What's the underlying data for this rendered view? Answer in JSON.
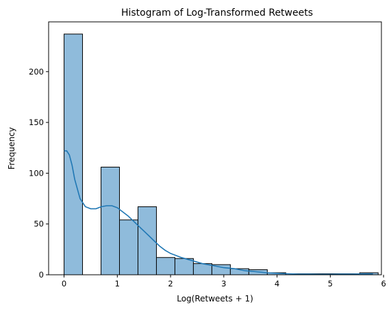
{
  "chart_data": {
    "type": "bar",
    "title": "Histogram of Log-Transformed Retweets",
    "xlabel": "Log(Retweets + 1)",
    "ylabel": "Frequency",
    "xlim": [
      -0.29,
      5.96
    ],
    "ylim": [
      0,
      249
    ],
    "xticks": [
      0,
      1,
      2,
      3,
      4,
      5,
      6
    ],
    "yticks": [
      0,
      50,
      100,
      150,
      200
    ],
    "grid": false,
    "bar_color": "#8fbbdb",
    "line_color": "#1f77b4",
    "bins": [
      {
        "x0": 0.0,
        "x1": 0.347,
        "value": 237
      },
      {
        "x0": 0.347,
        "x1": 0.694,
        "value": 0
      },
      {
        "x0": 0.694,
        "x1": 1.041,
        "value": 106
      },
      {
        "x0": 1.041,
        "x1": 1.388,
        "value": 54
      },
      {
        "x0": 1.388,
        "x1": 1.735,
        "value": 67
      },
      {
        "x0": 1.735,
        "x1": 2.082,
        "value": 17
      },
      {
        "x0": 2.082,
        "x1": 2.429,
        "value": 16
      },
      {
        "x0": 2.429,
        "x1": 2.776,
        "value": 11
      },
      {
        "x0": 2.776,
        "x1": 3.123,
        "value": 10
      },
      {
        "x0": 3.123,
        "x1": 3.47,
        "value": 6
      },
      {
        "x0": 3.47,
        "x1": 3.817,
        "value": 5
      },
      {
        "x0": 3.817,
        "x1": 4.164,
        "value": 2
      },
      {
        "x0": 4.164,
        "x1": 4.511,
        "value": 1
      },
      {
        "x0": 4.511,
        "x1": 4.858,
        "value": 1
      },
      {
        "x0": 4.858,
        "x1": 5.205,
        "value": 1
      },
      {
        "x0": 5.205,
        "x1": 5.552,
        "value": 1
      },
      {
        "x0": 5.552,
        "x1": 5.899,
        "value": 2
      }
    ],
    "kde": {
      "x": [
        0.0,
        0.05,
        0.1,
        0.15,
        0.2,
        0.3,
        0.4,
        0.5,
        0.6,
        0.7,
        0.8,
        0.9,
        1.0,
        1.1,
        1.2,
        1.3,
        1.4,
        1.5,
        1.6,
        1.7,
        1.8,
        1.9,
        2.0,
        2.2,
        2.4,
        2.6,
        2.8,
        3.0,
        3.2,
        3.4,
        3.6,
        3.8,
        4.0,
        4.2,
        4.4,
        4.6,
        4.8,
        5.0,
        5.2,
        5.4,
        5.6,
        5.8
      ],
      "y": [
        122,
        122,
        118,
        108,
        94,
        75,
        67,
        65,
        65,
        67,
        68,
        68,
        66,
        62,
        58,
        53,
        48,
        43,
        38,
        33,
        28,
        24,
        21,
        17,
        14,
        11,
        9,
        7,
        6,
        4,
        3,
        2,
        1.5,
        1,
        0.7,
        0.6,
        0.5,
        0.5,
        0.6,
        0.7,
        0.8,
        0.9
      ]
    }
  }
}
